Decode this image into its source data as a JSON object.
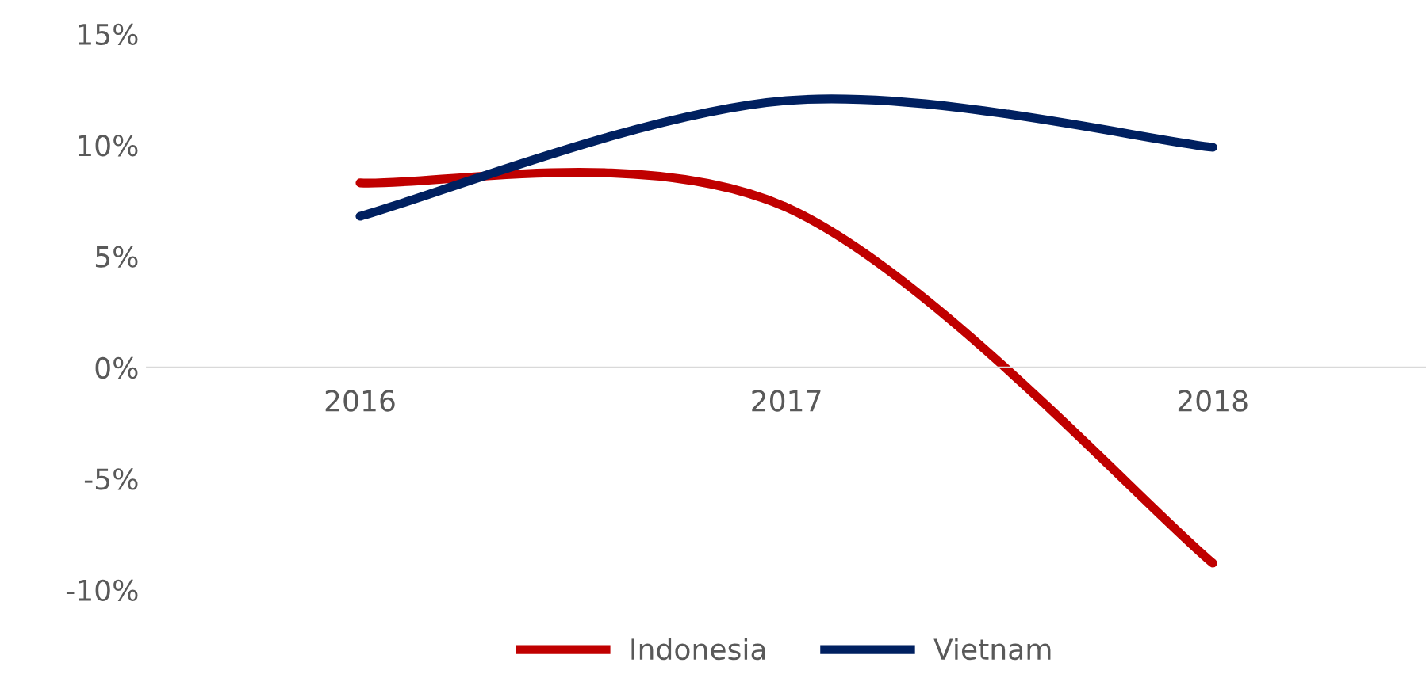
{
  "chart_data": {
    "type": "line",
    "categories": [
      "2016",
      "2017",
      "2018"
    ],
    "series": [
      {
        "name": "Indonesia",
        "color": "#c00000",
        "values": [
          8.3,
          7.2,
          -8.8
        ]
      },
      {
        "name": "Vietnam",
        "color": "#002060",
        "values": [
          6.8,
          12.0,
          9.9
        ]
      }
    ],
    "ylim": [
      -10,
      15
    ],
    "yticks": [
      {
        "value": -10,
        "label": "-10%"
      },
      {
        "value": -5,
        "label": "-5%"
      },
      {
        "value": 0,
        "label": "0%"
      },
      {
        "value": 5,
        "label": "5%"
      },
      {
        "value": 10,
        "label": "10%"
      },
      {
        "value": 15,
        "label": "15%"
      }
    ],
    "grid": false,
    "legend": "bottom",
    "marker": "none",
    "line_style": "solid"
  }
}
